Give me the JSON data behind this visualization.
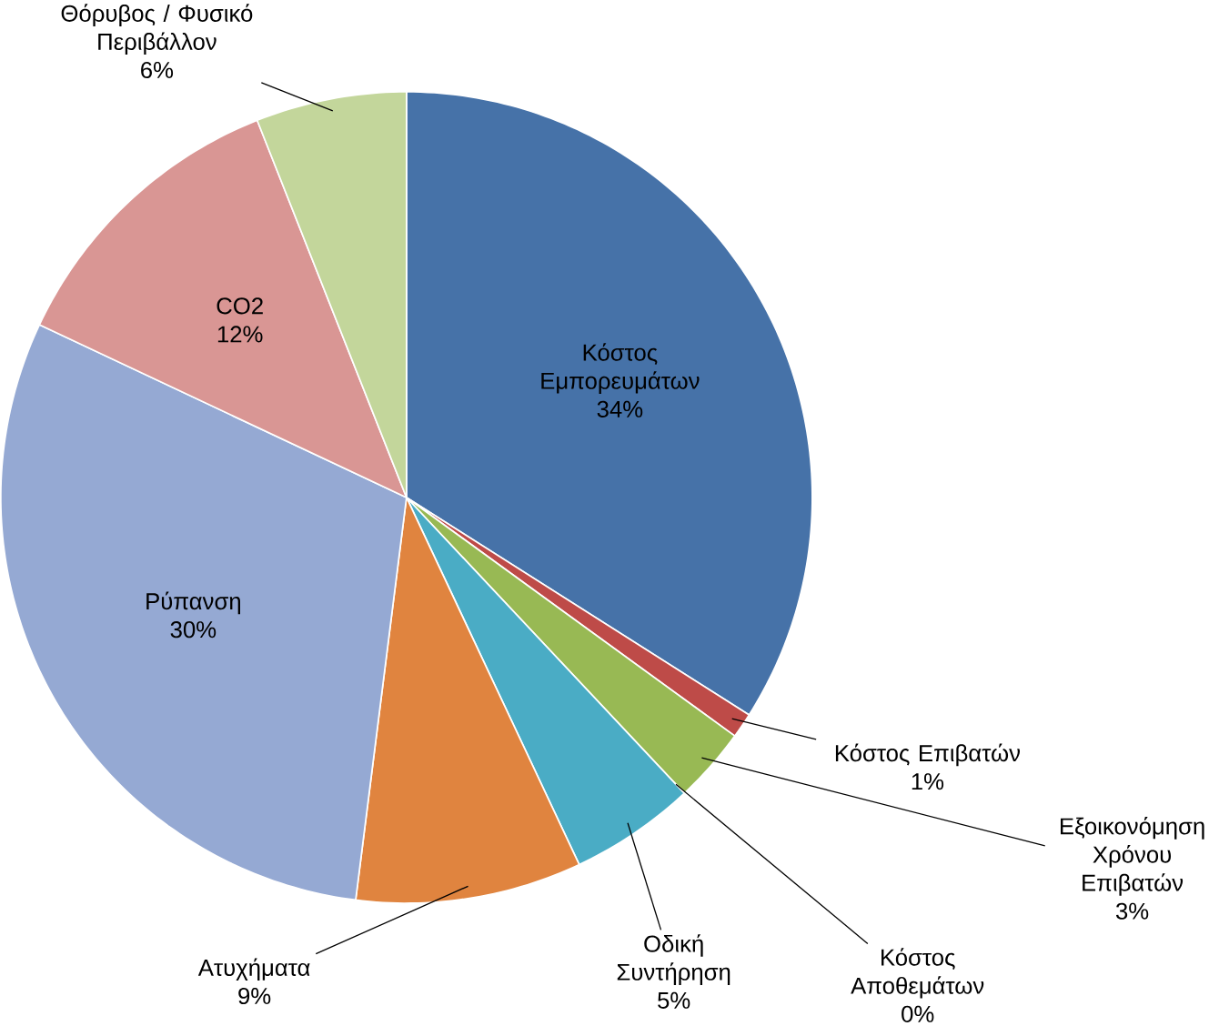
{
  "chart_data": {
    "type": "pie",
    "categories": [
      "Κόστος Εμπορευμάτων",
      "Κόστος Επιβατών",
      "Εξοικονόμηση Χρόνου Επιβατών",
      "Κόστος Αποθεμάτων",
      "Οδική Συντήρηση",
      "Ατυχήματα",
      "Ρύπανση",
      "CO2",
      "Θόρυβος / Φυσικό Περιβάλλον"
    ],
    "values": [
      34,
      1,
      3,
      0,
      5,
      9,
      30,
      12,
      6
    ],
    "value_labels": [
      "34%",
      "1%",
      "3%",
      "0%",
      "5%",
      "9%",
      "30%",
      "12%",
      "6%"
    ],
    "colors": [
      "#4672a8",
      "#be4b48",
      "#98b954",
      "#7d5fa0",
      "#4aacc5",
      "#e0843f",
      "#95a9d3",
      "#d99694",
      "#c3d69b"
    ]
  }
}
